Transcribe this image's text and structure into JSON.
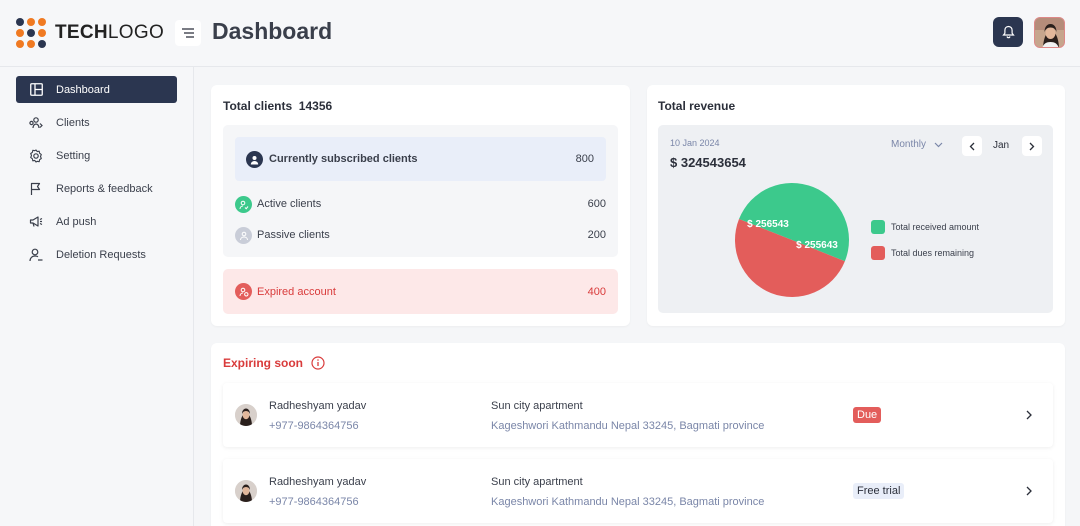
{
  "brand": {
    "logo_bold": "TECH",
    "logo_light": "LOGO"
  },
  "header": {
    "title": "Dashboard",
    "menu_icon": "menu-icon",
    "bell_icon": "bell-icon"
  },
  "sidebar": {
    "items": [
      {
        "label": "Dashboard",
        "icon": "dashboard-icon",
        "active": true
      },
      {
        "label": "Clients",
        "icon": "clients-icon"
      },
      {
        "label": "Setting",
        "icon": "gear-icon"
      },
      {
        "label": "Reports & feedback",
        "icon": "flag-icon"
      },
      {
        "label": "Ad push",
        "icon": "megaphone-icon"
      },
      {
        "label": "Deletion Requests",
        "icon": "user-remove-icon"
      }
    ]
  },
  "clients": {
    "title": "Total clients",
    "total": "14356",
    "subscribed_label": "Currently subscribed clients",
    "subscribed_value": "800",
    "active_label": "Active clients",
    "active_value": "600",
    "passive_label": "Passive clients",
    "passive_value": "200",
    "expired_label": "Expired account",
    "expired_value": "400"
  },
  "revenue": {
    "title": "Total revenue",
    "date": "10 Jan 2024",
    "amount": "$ 324543654",
    "period": "Monthly",
    "month": "Jan",
    "chart_data": {
      "type": "pie",
      "series": [
        {
          "name": "Total received amount",
          "label": "$ 256543",
          "value": 256543,
          "color": "#3cc98c"
        },
        {
          "name": "Total dues remaining",
          "label": "$ 255643",
          "value": 255643,
          "color": "#e35d5b"
        }
      ]
    }
  },
  "expiring": {
    "title": "Expiring soon",
    "rows": [
      {
        "name": "Radheshyam yadav",
        "phone": "+977-9864364756",
        "place": "Sun city apartment",
        "address": "Kageshwori Kathmandu Nepal 33245, Bagmati province",
        "status": "Due"
      },
      {
        "name": "Radheshyam yadav",
        "phone": "+977-9864364756",
        "place": "Sun city apartment",
        "address": "Kageshwori Kathmandu Nepal 33245, Bagmati province",
        "status": "Free trial"
      }
    ]
  },
  "colors": {
    "primary": "#2b3650",
    "green": "#3cc98c",
    "red": "#e35d5b",
    "danger_text": "#d93b3b"
  }
}
